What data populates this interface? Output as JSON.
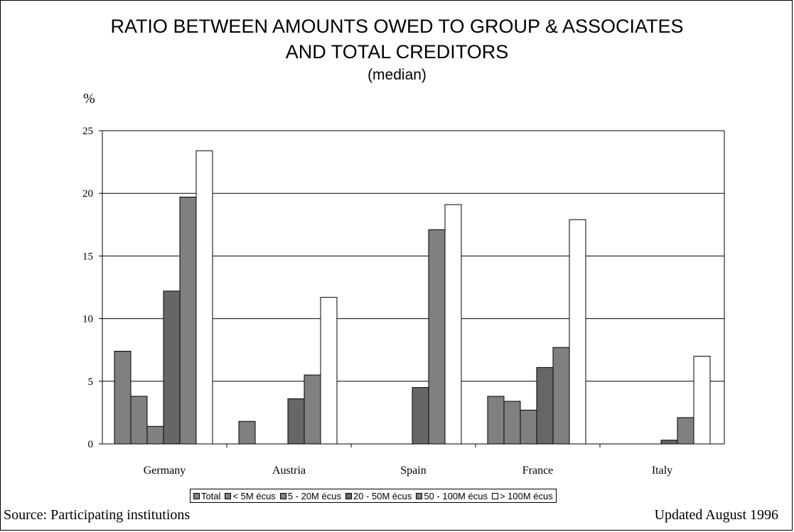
{
  "title_line1": "RATIO BETWEEN AMOUNTS OWED TO GROUP & ASSOCIATES",
  "title_line2": "AND TOTAL CREDITORS",
  "subtitle": "(median)",
  "unit_label": "%",
  "source_note": "Source: Participating institutions",
  "update_note": "Updated August 1996",
  "chart_data": {
    "type": "bar",
    "title": "RATIO BETWEEN AMOUNTS OWED TO GROUP & ASSOCIATES AND TOTAL CREDITORS",
    "subtitle": "(median)",
    "ylabel": "%",
    "xlabel": "",
    "ylim": [
      0,
      25
    ],
    "yticks": [
      0,
      5,
      10,
      15,
      20,
      25
    ],
    "grid": true,
    "legend_position": "bottom",
    "categories": [
      "Germany",
      "Austria",
      "Spain",
      "France",
      "Italy"
    ],
    "series": [
      {
        "name": "Total",
        "color": "#808080",
        "values": [
          7.4,
          1.8,
          null,
          3.8,
          null
        ]
      },
      {
        "name": "< 5M écus",
        "color": "#808080",
        "values": [
          3.8,
          null,
          null,
          3.4,
          null
        ]
      },
      {
        "name": "5 - 20M écus",
        "color": "#808080",
        "values": [
          1.4,
          null,
          null,
          2.7,
          null
        ]
      },
      {
        "name": "20 - 50M écus",
        "color": "#666666",
        "values": [
          12.2,
          3.6,
          4.5,
          6.1,
          0.3
        ]
      },
      {
        "name": "50 - 100M écus",
        "color": "#808080",
        "values": [
          19.7,
          5.5,
          17.1,
          7.7,
          2.1
        ]
      },
      {
        "name": "> 100M écus",
        "color": "#ffffff",
        "values": [
          23.4,
          11.7,
          19.1,
          17.9,
          7.0
        ]
      }
    ]
  }
}
